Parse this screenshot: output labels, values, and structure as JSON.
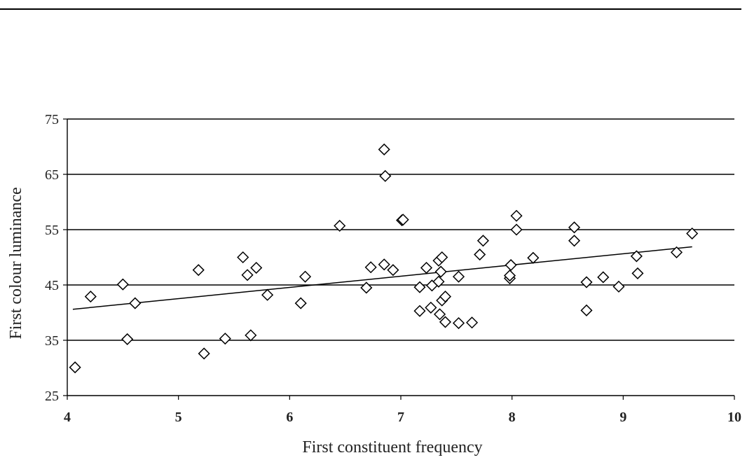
{
  "chart_data": {
    "type": "scatter",
    "title": "",
    "xlabel": "First constituent frequency",
    "ylabel": "First colour luminance",
    "xlim": [
      4,
      10
    ],
    "ylim": [
      25,
      75
    ],
    "x_ticks": [
      "4",
      "5",
      "6",
      "7",
      "8",
      "9",
      "10"
    ],
    "y_ticks": [
      "25",
      "35",
      "45",
      "55",
      "65",
      "75"
    ],
    "grid": "horizontal",
    "marker": "diamond-open",
    "series": [
      {
        "points": [
          [
            4.07,
            30.1
          ],
          [
            4.21,
            42.9
          ],
          [
            4.5,
            45.1
          ],
          [
            4.54,
            35.2
          ],
          [
            4.61,
            41.7
          ],
          [
            5.18,
            47.7
          ],
          [
            5.23,
            32.6
          ],
          [
            5.42,
            35.3
          ],
          [
            5.58,
            50.0
          ],
          [
            5.62,
            46.8
          ],
          [
            5.65,
            35.9
          ],
          [
            5.7,
            48.1
          ],
          [
            5.8,
            43.2
          ],
          [
            6.1,
            41.7
          ],
          [
            6.14,
            46.5
          ],
          [
            6.45,
            55.7
          ],
          [
            6.69,
            44.5
          ],
          [
            6.73,
            48.2
          ],
          [
            6.85,
            48.7
          ],
          [
            6.85,
            69.5
          ],
          [
            6.86,
            64.7
          ],
          [
            6.93,
            47.7
          ],
          [
            7.01,
            56.7
          ],
          [
            7.02,
            56.8
          ],
          [
            7.17,
            44.6
          ],
          [
            7.17,
            40.3
          ],
          [
            7.23,
            48.1
          ],
          [
            7.27,
            40.9
          ],
          [
            7.28,
            44.9
          ],
          [
            7.34,
            45.6
          ],
          [
            7.34,
            49.4
          ],
          [
            7.35,
            39.7
          ],
          [
            7.36,
            47.4
          ],
          [
            7.37,
            50.0
          ],
          [
            7.37,
            42.2
          ],
          [
            7.4,
            38.3
          ],
          [
            7.4,
            42.9
          ],
          [
            7.52,
            38.1
          ],
          [
            7.52,
            46.5
          ],
          [
            7.64,
            38.2
          ],
          [
            7.71,
            50.5
          ],
          [
            7.74,
            53.0
          ],
          [
            7.98,
            46.2
          ],
          [
            7.98,
            46.7
          ],
          [
            7.99,
            48.6
          ],
          [
            8.04,
            57.5
          ],
          [
            8.04,
            55.0
          ],
          [
            8.19,
            49.9
          ],
          [
            8.56,
            55.4
          ],
          [
            8.56,
            53.0
          ],
          [
            8.67,
            45.5
          ],
          [
            8.67,
            40.4
          ],
          [
            8.82,
            46.4
          ],
          [
            8.96,
            44.7
          ],
          [
            9.12,
            50.2
          ],
          [
            9.13,
            47.1
          ],
          [
            9.48,
            50.9
          ],
          [
            9.62,
            54.3
          ]
        ]
      }
    ],
    "trendline": {
      "type": "linear",
      "x": [
        4.05,
        9.62
      ],
      "y": [
        40.6,
        51.9
      ]
    }
  }
}
